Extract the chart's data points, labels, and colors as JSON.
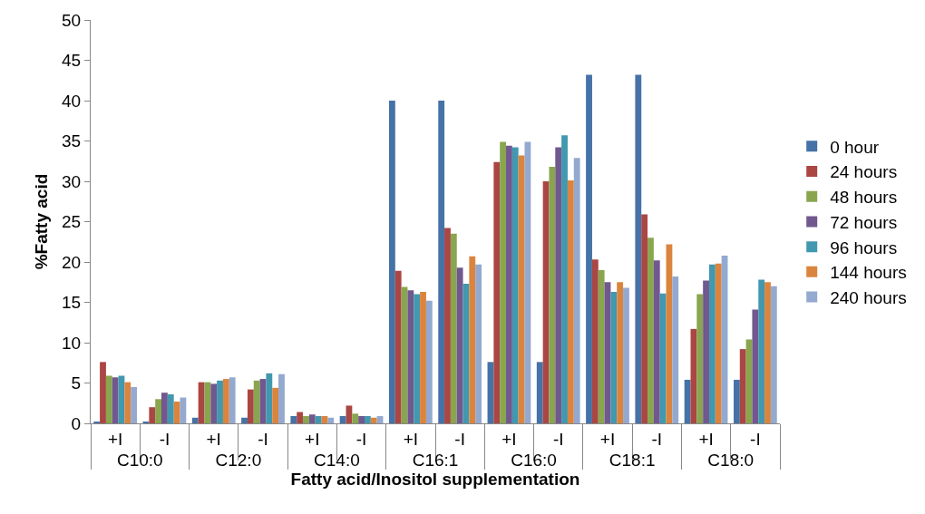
{
  "chart_data": {
    "type": "bar",
    "xlabel": "Fatty acid/Inositol supplementation",
    "ylabel": "%Fatty acid",
    "categories": [
      "+I",
      "-I",
      "+I",
      "-I",
      "+I",
      "-I",
      "+I",
      "-I",
      "+I",
      "-I",
      "+I",
      "-I",
      "+I",
      "-I"
    ],
    "annotations": [
      "C10:0",
      "C12:0",
      "C14:0",
      "C16:1",
      "C16:0",
      "C18:1",
      "C18:0"
    ],
    "series": [
      {
        "name": "0 hour",
        "color": "#4572a7",
        "values": [
          0.2,
          0.2,
          0.7,
          0.7,
          0.9,
          0.9,
          40.0,
          40.0,
          7.6,
          7.6,
          43.2,
          43.2,
          5.4,
          5.4
        ]
      },
      {
        "name": "24 hours",
        "color": "#aa4643",
        "values": [
          7.6,
          2.0,
          5.1,
          4.2,
          1.4,
          2.2,
          18.9,
          24.2,
          32.4,
          30.0,
          20.3,
          25.9,
          11.7,
          9.2
        ]
      },
      {
        "name": "48 hours",
        "color": "#89a54e",
        "values": [
          5.9,
          3.0,
          5.1,
          5.3,
          0.9,
          1.2,
          16.9,
          23.5,
          34.9,
          31.8,
          19.0,
          23.0,
          16.0,
          10.4
        ]
      },
      {
        "name": "72 hours",
        "color": "#71588f",
        "values": [
          5.7,
          3.8,
          4.9,
          5.5,
          1.1,
          0.9,
          16.5,
          19.3,
          34.4,
          34.2,
          17.5,
          20.2,
          17.7,
          14.1
        ]
      },
      {
        "name": "96 hours",
        "color": "#4198af",
        "values": [
          5.9,
          3.6,
          5.3,
          6.2,
          0.9,
          0.9,
          16.0,
          17.3,
          34.2,
          35.7,
          16.3,
          16.1,
          19.7,
          17.8
        ]
      },
      {
        "name": "144 hours",
        "color": "#db843d",
        "values": [
          5.1,
          2.7,
          5.5,
          4.4,
          0.9,
          0.7,
          16.3,
          20.7,
          33.2,
          30.1,
          17.5,
          22.2,
          19.8,
          17.5
        ]
      },
      {
        "name": "240 hours",
        "color": "#93a9cf",
        "values": [
          4.5,
          3.2,
          5.7,
          6.1,
          0.7,
          0.9,
          15.2,
          19.7,
          34.9,
          32.9,
          16.8,
          18.2,
          20.8,
          17.0
        ]
      }
    ],
    "ylim": [
      0,
      50
    ],
    "yticks": [
      0,
      5,
      10,
      15,
      20,
      25,
      30,
      35,
      40,
      45,
      50
    ],
    "grid": false,
    "legend": "right"
  }
}
